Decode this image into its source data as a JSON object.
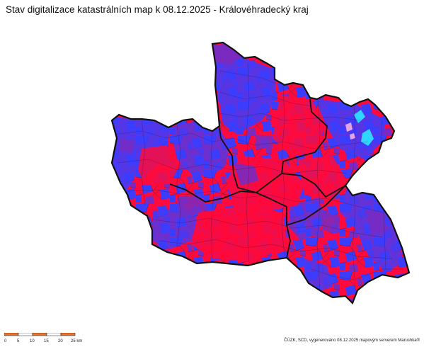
{
  "title": "Stav digitalizace katastrálních map k 08.12.2025 - Královéhradecký kraj",
  "credit": "ČÚZK, SCD, vygenerováno 08.12.2025 mapovým serverem Marushka®",
  "scale_bar": {
    "labels": [
      "0",
      "5",
      "10",
      "15",
      "20",
      "25 km"
    ],
    "colors": [
      "#e8732a",
      "#ffffff"
    ]
  },
  "map_colors": {
    "red": "#ff0a3c",
    "blue": "#3c3cff",
    "purple": "#7a2abf",
    "cyan": "#2fd6ff",
    "pink": "#e7a3e7",
    "outline": "#111111",
    "inner_line": "#202020"
  }
}
